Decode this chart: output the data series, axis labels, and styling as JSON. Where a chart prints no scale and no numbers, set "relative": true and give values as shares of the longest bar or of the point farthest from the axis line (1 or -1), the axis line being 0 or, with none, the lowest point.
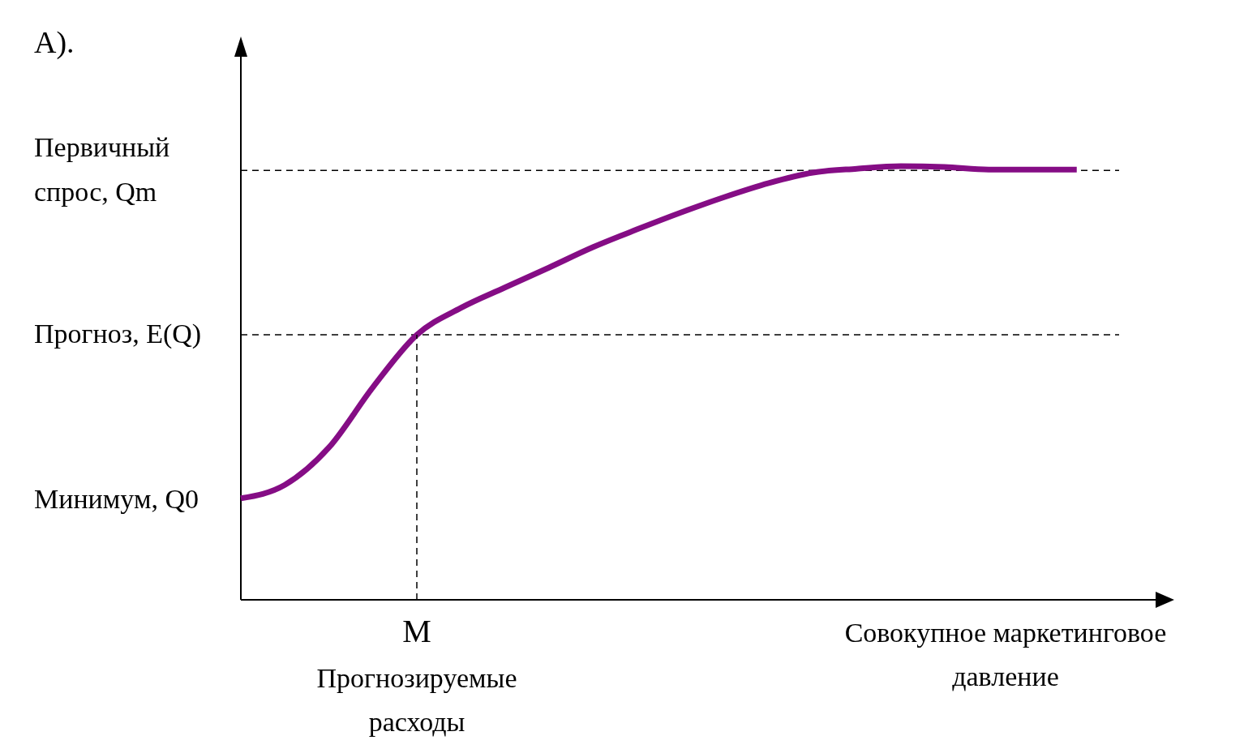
{
  "chart_data": {
    "type": "line",
    "relative": true,
    "categories": [
      null,
      null,
      null,
      null,
      null,
      null,
      null,
      null,
      null,
      null,
      null,
      null,
      null,
      null,
      null,
      null,
      null,
      null,
      null,
      null
    ],
    "xlabel": "Совокупное маркетинговое давление",
    "series": [
      {
        "color": "#850d85",
        "values": [
          0.234,
          0.265,
          0.351,
          0.49,
          0.611,
          0.673,
          0.72,
          0.766,
          0.813,
          0.854,
          0.893,
          0.929,
          0.961,
          0.985,
          0.994,
          1,
          0.998,
          0.992,
          0.992,
          0.992
        ]
      }
    ],
    "ref_lines": [
      {
        "axis": "y",
        "value": 0.99,
        "label": "Первичный спрос, Qm",
        "line_style": "dashed",
        "color": "#000000"
      },
      {
        "axis": "y",
        "value": 0.611,
        "label": "Прогноз, E(Q)",
        "line_style": "dashed",
        "color": "#000000"
      }
    ],
    "annotations": [
      "А).",
      "Минимум, Q0",
      {
        "text": "M",
        "y": 0.611
      },
      "Прогнозируемые расходы"
    ],
    "line_style": "solid"
  }
}
